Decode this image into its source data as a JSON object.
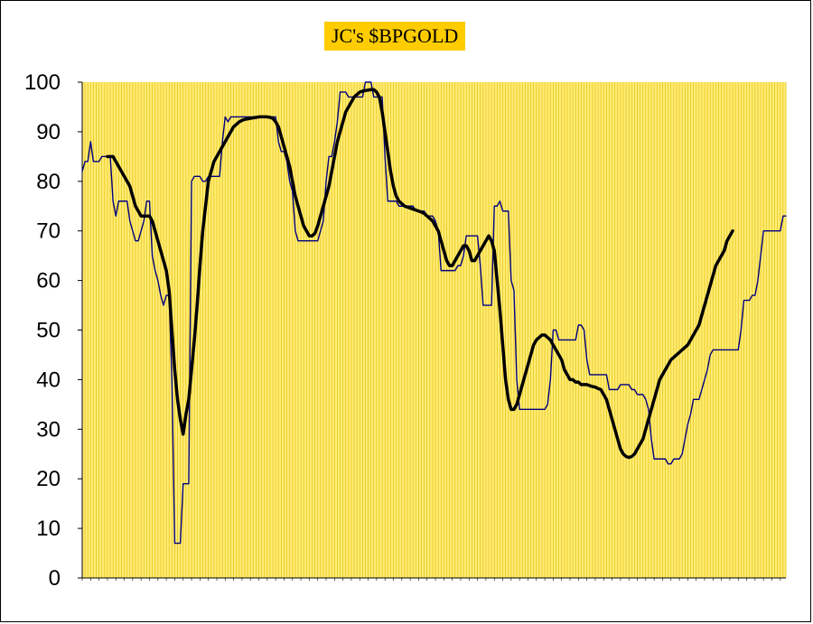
{
  "chart_data": {
    "type": "line",
    "title": "JC's $BPGOLD",
    "xlabel": "",
    "ylabel": "",
    "ylim": [
      0,
      100
    ],
    "yticks": [
      "0",
      "10",
      "20",
      "30",
      "40",
      "50",
      "60",
      "70",
      "80",
      "90",
      "100"
    ],
    "x_tick_labels_legible": false,
    "grid": "dense vertical gridlines",
    "plot_background": "#ffee77",
    "grid_color": "#e8c21a",
    "title_background": "#ffcc00",
    "series": [
      {
        "color": "#000080",
        "style": "thin",
        "values": [
          82,
          84,
          84,
          88,
          84,
          84,
          84,
          85,
          85,
          85,
          85,
          76,
          73,
          76,
          76,
          76,
          76,
          72,
          70,
          68,
          68,
          70,
          72,
          76,
          76,
          65,
          62,
          60,
          57,
          55,
          57,
          57,
          40,
          7,
          7,
          7,
          19,
          19,
          19,
          80,
          81,
          81,
          81,
          80,
          80,
          81,
          81,
          81,
          81,
          81,
          88,
          93,
          92,
          93,
          93,
          93,
          93,
          93,
          93,
          93,
          93,
          93,
          93,
          93,
          93,
          93,
          93,
          93,
          93,
          93,
          88,
          86,
          86,
          84,
          80,
          78,
          70,
          68,
          68,
          68,
          68,
          68,
          68,
          68,
          68,
          70,
          72,
          80,
          85,
          85,
          88,
          92,
          98,
          98,
          98,
          97,
          97,
          97,
          97,
          97,
          97,
          100,
          100,
          100,
          97,
          97,
          97,
          97,
          85,
          76,
          76,
          76,
          76,
          75,
          75,
          75,
          75,
          75,
          75,
          74,
          74,
          74,
          74,
          73,
          73,
          73,
          72,
          70,
          62,
          62,
          62,
          62,
          62,
          62,
          63,
          63,
          65,
          69,
          69,
          69,
          69,
          69,
          63,
          55,
          55,
          55,
          55,
          75,
          75,
          76,
          74,
          74,
          74,
          60,
          58,
          40,
          34,
          34,
          34,
          34,
          34,
          34,
          34,
          34,
          34,
          34,
          35,
          40,
          50,
          50,
          48,
          48,
          48,
          48,
          48,
          48,
          48,
          51,
          51,
          50,
          44,
          41,
          41,
          41,
          41,
          41,
          41,
          41,
          38,
          38,
          38,
          38,
          39,
          39,
          39,
          39,
          38,
          38,
          37,
          37,
          37,
          36,
          34,
          28,
          24,
          24,
          24,
          24,
          24,
          23,
          23,
          24,
          24,
          24,
          25,
          28,
          31,
          33,
          36,
          36,
          36,
          38,
          40,
          42,
          45,
          46,
          46,
          46,
          46,
          46,
          46,
          46,
          46,
          46,
          46,
          50,
          56,
          56,
          56,
          57,
          57,
          60,
          65,
          70,
          70,
          70,
          70,
          70,
          70,
          70,
          73,
          73
        ]
      },
      {
        "color": "#000000",
        "style": "thick smoothed",
        "values": [
          null,
          null,
          null,
          null,
          null,
          null,
          null,
          null,
          null,
          85,
          85,
          85,
          84,
          83,
          82,
          81,
          80,
          79,
          77,
          75,
          74,
          73,
          73,
          73,
          73,
          72,
          70,
          68,
          66,
          64,
          62,
          58,
          50,
          42,
          36,
          32,
          29,
          33,
          36,
          42,
          48,
          55,
          63,
          70,
          75,
          80,
          82,
          84,
          85,
          86,
          87,
          88,
          89,
          90,
          91,
          91.5,
          92,
          92.3,
          92.5,
          92.6,
          92.7,
          92.8,
          92.9,
          93,
          93,
          93,
          93,
          92.9,
          92.7,
          92,
          91,
          89,
          87,
          85,
          83,
          80,
          77,
          75,
          73,
          71,
          70,
          69,
          69,
          69.5,
          71,
          73,
          75,
          77,
          79,
          82,
          85,
          88,
          90,
          92,
          94,
          95,
          96,
          97,
          97.5,
          98,
          98.2,
          98.3,
          98.4,
          98.5,
          98.5,
          98,
          97,
          94,
          90,
          86,
          82,
          79,
          77,
          76,
          75.5,
          75,
          74.8,
          74.6,
          74.4,
          74.2,
          74,
          73.8,
          73.5,
          73,
          72.5,
          72,
          71,
          70,
          68,
          66,
          64,
          63,
          63,
          64,
          65,
          66,
          67,
          67,
          66,
          64,
          64,
          65,
          66,
          67,
          68,
          69,
          68,
          66,
          60,
          54,
          47,
          40,
          36,
          34,
          34,
          35,
          37,
          39,
          41,
          43,
          45,
          47,
          48,
          48.5,
          49,
          49,
          48.5,
          48,
          47,
          46,
          45,
          44,
          42,
          41,
          40,
          40,
          39.5,
          39.5,
          39,
          39,
          39,
          38.8,
          38.6,
          38.5,
          38.2,
          38,
          37,
          36,
          34,
          32,
          30,
          28,
          26,
          25,
          24.5,
          24.3,
          24.5,
          25,
          26,
          27,
          28,
          30,
          32,
          34,
          36,
          38,
          40,
          41,
          42,
          43,
          44,
          44.5,
          45,
          45.5,
          46,
          46.5,
          47,
          48,
          49,
          50,
          51,
          53,
          55,
          57,
          59,
          61,
          63,
          64,
          65,
          66,
          68,
          69,
          70
        ]
      }
    ]
  }
}
